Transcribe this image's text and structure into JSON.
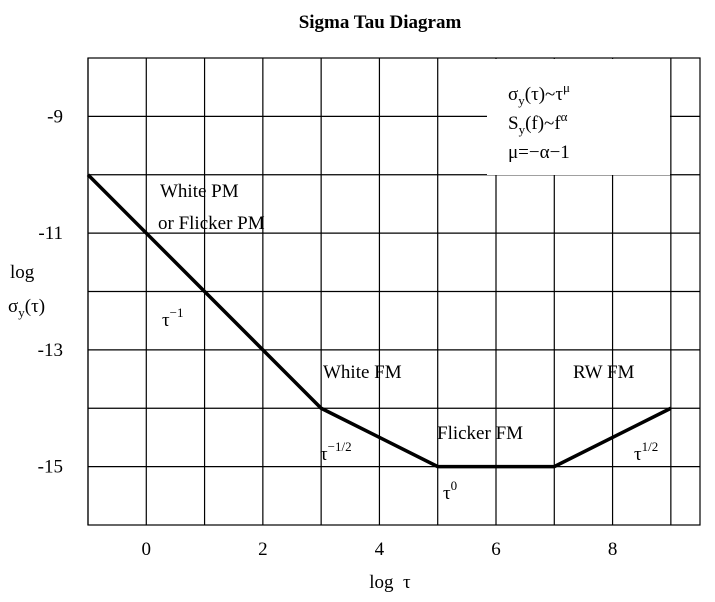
{
  "chart_data": {
    "type": "line",
    "title": "Sigma Tau Diagram",
    "x_label": "log  τ",
    "y_label": [
      "log",
      "σ",
      "y",
      "(τ)"
    ],
    "x": [
      -1,
      3,
      5,
      7,
      9
    ],
    "series": [
      {
        "color": "#000000",
        "values": [
          -10,
          -14,
          -15,
          -15,
          -14
        ]
      }
    ],
    "xlim": [
      -1,
      9.5
    ],
    "xticks": [
      0,
      2,
      4,
      6,
      8
    ],
    "xgrid_minor": [
      -1,
      1,
      3,
      5,
      7,
      9
    ],
    "ylim": [
      -16,
      -8
    ],
    "yticks": [
      -9,
      -11,
      -13,
      -15
    ],
    "ygrid_minor": [
      -10,
      -12,
      -14
    ],
    "grid": true,
    "annotations": {
      "formula": [
        [
          "σ",
          "y",
          "(τ)~τ",
          "μ"
        ],
        [
          "S",
          "y",
          "(f)~f",
          "α"
        ],
        [
          "μ=−α−1"
        ]
      ],
      "noise": [
        "White PM",
        "or Flicker PM",
        "White FM",
        "Flicker FM",
        "RW FM"
      ],
      "slopes": [
        [
          "τ",
          "−1"
        ],
        [
          "τ",
          "−1/2"
        ],
        [
          "τ",
          "0"
        ],
        [
          "τ",
          "1/2"
        ]
      ]
    }
  }
}
